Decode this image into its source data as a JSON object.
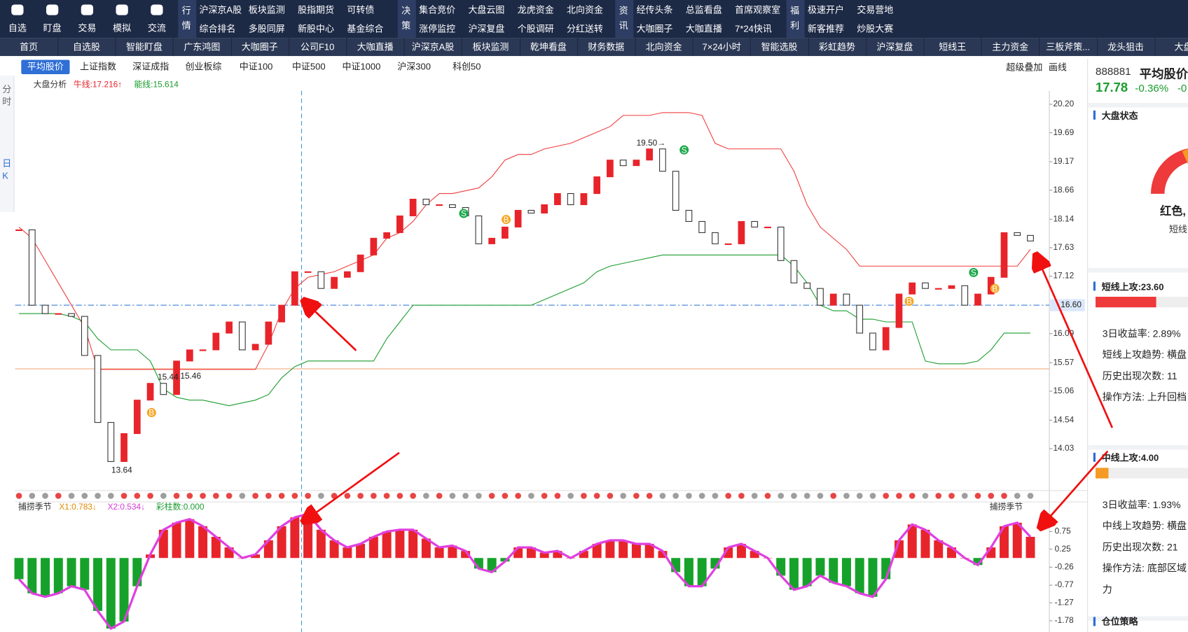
{
  "top_nav": {
    "icons": [
      "自选",
      "盯盘",
      "交易",
      "模拟",
      "交流"
    ],
    "groups": [
      {
        "label": "行情",
        "items": [
          [
            "沪深京A股",
            "综合排名"
          ],
          [
            "板块监测",
            "多股同屏"
          ],
          [
            "股指期货",
            "新股中心"
          ],
          [
            "可转债",
            "基金综合"
          ]
        ]
      },
      {
        "label": "决策",
        "items": [
          [
            "集合竞价",
            "涨停监控"
          ],
          [
            "大盘云图",
            "沪深复盘"
          ],
          [
            "龙虎资金",
            "个股调研"
          ],
          [
            "北向资金",
            "分红送转"
          ]
        ]
      },
      {
        "label": "资讯",
        "items": [
          [
            "经传头条",
            "大咖圈子"
          ],
          [
            "总监看盘",
            "大咖直播"
          ],
          [
            "首席观察室",
            "7*24快讯"
          ]
        ]
      },
      {
        "label": "福利",
        "items": [
          [
            "极速开户",
            "新客推荐"
          ],
          [
            "交易营地",
            "炒股大赛"
          ]
        ]
      }
    ]
  },
  "tabs": [
    "首页",
    "自选股",
    "智能盯盘",
    "广东鸿图",
    "大咖圈子",
    "公司F10",
    "大咖直播",
    "沪深京A股",
    "板块监测",
    "乾坤看盘",
    "财务数据",
    "北向资金",
    "7×24小时",
    "智能选股",
    "彩虹趋势",
    "沪深复盘",
    "短线王",
    "主力资金",
    "三板斧策...",
    "龙头狙击",
    "大盘"
  ],
  "side_tabs": [
    "分时",
    "日K"
  ],
  "index_tabs": [
    "平均股价",
    "上证指数",
    "深证成指",
    "创业板综",
    "中证100",
    "中证500",
    "中证1000",
    "沪深300",
    "科创50"
  ],
  "selected_index": 0,
  "tools": [
    "超级叠加",
    "画线"
  ],
  "chart_data": [
    {
      "type": "candlestick",
      "title": "大盘分析",
      "indicators": [
        "牛线:17.216↑",
        "能线:15.614"
      ],
      "indicator_colors": [
        "#e8242b",
        "#1a9c2e"
      ],
      "up_color": "#e8242b",
      "down_color": "#333333",
      "dot_colors": [
        "#e84545",
        "#9e9e9e"
      ],
      "closes": [
        17.95,
        16.6,
        16.45,
        16.45,
        16.4,
        15.7,
        14.5,
        13.8,
        14.3,
        14.9,
        15.2,
        15.0,
        15.6,
        15.8,
        15.8,
        16.1,
        16.3,
        15.8,
        15.9,
        16.3,
        16.6,
        17.2,
        17.2,
        16.9,
        17.1,
        17.2,
        17.5,
        17.8,
        17.9,
        18.2,
        18.5,
        18.4,
        18.4,
        18.35,
        18.2,
        17.7,
        17.8,
        18.0,
        18.3,
        18.25,
        18.4,
        18.6,
        18.4,
        18.6,
        18.9,
        19.2,
        19.1,
        19.2,
        19.4,
        19.0,
        18.3,
        18.1,
        17.9,
        17.7,
        17.7,
        18.1,
        18.0,
        18.0,
        17.4,
        17.0,
        16.9,
        16.6,
        16.8,
        16.6,
        16.1,
        15.8,
        16.2,
        16.8,
        17.0,
        16.9,
        16.9,
        16.95,
        16.6,
        16.8,
        17.1,
        17.9,
        17.85,
        17.75
      ],
      "series": [
        {
          "color": "#f03c3c",
          "values": [
            18.0,
            17.8,
            17.4,
            17.0,
            16.6,
            16.2,
            15.45,
            15.45,
            15.45,
            15.45,
            15.45,
            15.45,
            15.45,
            15.45,
            15.45,
            15.45,
            15.45,
            15.45,
            15.45,
            15.9,
            16.5,
            16.9,
            17.1,
            17.15,
            17.2,
            17.3,
            17.4,
            17.5,
            17.8,
            17.9,
            18.1,
            18.4,
            18.6,
            18.6,
            18.65,
            18.7,
            18.9,
            19.2,
            19.3,
            19.3,
            19.4,
            19.45,
            19.5,
            19.6,
            19.7,
            19.8,
            20.0,
            20.0,
            20.0,
            20.05,
            20.05,
            20.05,
            20.0,
            19.5,
            19.4,
            19.4,
            19.4,
            19.4,
            19.4,
            19.0,
            18.4,
            18.0,
            17.8,
            17.6,
            17.3,
            17.3,
            17.3,
            17.3,
            17.3,
            17.3,
            17.3,
            17.3,
            17.3,
            17.3,
            17.3,
            17.3,
            17.3,
            17.6
          ]
        },
        {
          "color": "#1a9c2e",
          "values": [
            16.45,
            16.45,
            16.45,
            16.45,
            16.4,
            16.3,
            16.0,
            15.8,
            15.8,
            15.8,
            15.6,
            15.1,
            14.95,
            14.9,
            14.9,
            14.85,
            14.8,
            14.85,
            14.9,
            15.0,
            15.3,
            15.5,
            15.6,
            15.6,
            15.6,
            15.6,
            15.6,
            15.6,
            16.0,
            16.3,
            16.6,
            16.6,
            16.6,
            16.6,
            16.6,
            16.6,
            16.6,
            16.6,
            16.6,
            16.6,
            16.7,
            16.8,
            16.9,
            17.0,
            17.2,
            17.3,
            17.35,
            17.4,
            17.45,
            17.5,
            17.5,
            17.5,
            17.5,
            17.5,
            17.5,
            17.5,
            17.5,
            17.5,
            17.5,
            17.3,
            17.0,
            16.6,
            16.5,
            16.5,
            16.35,
            16.35,
            16.3,
            16.3,
            16.3,
            15.6,
            15.55,
            15.55,
            15.55,
            15.6,
            15.8,
            16.1,
            16.1,
            16.1
          ]
        }
      ],
      "ylim": [
        13.28,
        20.44
      ],
      "yticks": [
        {
          "value": 20.2,
          "label": "20.20"
        },
        19.69,
        19.17,
        18.66,
        18.14,
        17.63,
        17.12,
        16.09,
        15.57,
        15.06,
        14.54,
        14.03
      ],
      "lines": [
        {
          "value": 16.6,
          "label": "16.60",
          "color": "#3b7fd6"
        },
        {
          "value": 15.46,
          "color": "#f0a070"
        }
      ],
      "annotations": [
        {
          "value": 13.64,
          "label": "13.64"
        },
        {
          "value": 15.44,
          "label": "15.44"
        },
        {
          "value": 15.46,
          "label": "15.46"
        },
        {
          "value": 19.5,
          "label": "19.50→"
        }
      ],
      "markers": [
        "B",
        "S",
        "B",
        "S",
        "B",
        "S",
        "B"
      ]
    },
    {
      "type": "bar",
      "title": "捕捞季节",
      "indicators": [
        "X1:0.783↓",
        "X2:0.534↓",
        "彩柱数:0.000"
      ],
      "indicator_colors": [
        "#e08a00",
        "#d63ad6",
        "#1a9c2e"
      ],
      "up_color": "#e8242b",
      "down_color": "#16a22a",
      "line_color": "#e040e0",
      "values": [
        -0.6,
        -1.0,
        -1.1,
        -1.0,
        -0.8,
        -0.9,
        -1.5,
        -2.0,
        -1.8,
        -0.8,
        0.1,
        0.8,
        1.0,
        1.1,
        0.9,
        0.6,
        0.3,
        0.0,
        0.1,
        0.5,
        0.9,
        1.15,
        1.25,
        0.8,
        0.5,
        0.3,
        0.4,
        0.6,
        0.75,
        0.8,
        0.8,
        0.55,
        0.3,
        0.35,
        0.2,
        -0.3,
        -0.4,
        -0.1,
        0.3,
        0.3,
        0.15,
        0.2,
        0.0,
        0.2,
        0.4,
        0.5,
        0.5,
        0.4,
        0.4,
        0.2,
        -0.4,
        -0.8,
        -0.8,
        -0.3,
        0.3,
        0.4,
        0.2,
        0.0,
        -0.5,
        -0.9,
        -0.8,
        -0.5,
        -0.7,
        -0.8,
        -1.0,
        -1.1,
        -0.6,
        0.5,
        0.95,
        0.8,
        0.5,
        0.3,
        0.0,
        -0.2,
        0.3,
        0.9,
        1.0,
        0.6
      ],
      "ylim": [
        -2.1,
        1.31
      ],
      "yticks": [
        0.75,
        0.25,
        -0.26,
        -0.77,
        -1.27,
        -1.78
      ]
    }
  ],
  "panel": {
    "code": "888881",
    "name": "平均股价",
    "price": "17.78",
    "change": "-0.36%",
    "change2": "-0",
    "status_title": "大盘状态",
    "status": "红色,",
    "status_sub": "短线",
    "short": {
      "title": "短线上攻:23.60",
      "rows": [
        "3日收益率: 2.89%",
        "短线上攻趋势: 横盘",
        "历史出现次数: 11",
        "操作方法: 上升回档"
      ]
    },
    "mid": {
      "title": "中线上攻:4.00",
      "rows": [
        "3日收益率: 1.93%",
        "中线上攻趋势: 横盘",
        "历史出现次数: 21",
        "操作方法: 底部区域",
        "力"
      ]
    },
    "position_title": "仓位策略"
  }
}
